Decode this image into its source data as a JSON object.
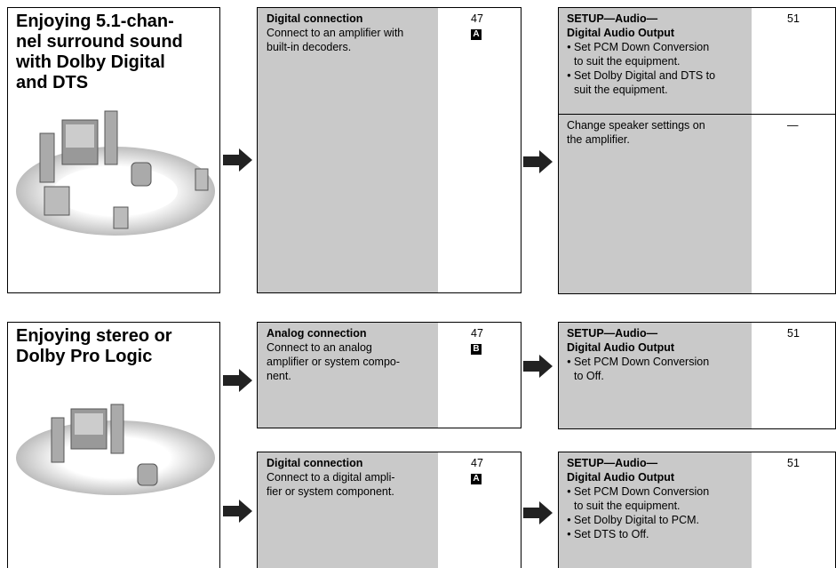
{
  "sections": [
    {
      "title": [
        "Enjoying 5.1-chan-",
        "nel surround sound",
        "with Dolby Digital",
        "and DTS"
      ],
      "rows": [
        {
          "connection": {
            "heading": "Digital connection",
            "lines": [
              "Connect to an amplifier with",
              "built-in decoders."
            ],
            "page": 47,
            "badge": "A"
          },
          "settings": [
            {
              "heading": [
                "SETUP—Audio—",
                "Digital Audio Output"
              ],
              "bullets": [
                [
                  "Set PCM Down Conversion",
                  "to suit the equipment."
                ],
                [
                  "Set Dolby Digital and DTS to",
                  "suit the equipment."
                ]
              ],
              "page": 51
            },
            {
              "lines": [
                "Change speaker settings on",
                "the amplifier."
              ],
              "page": "—"
            }
          ]
        }
      ]
    },
    {
      "title": [
        "Enjoying stereo or",
        "Dolby Pro Logic"
      ],
      "rows": [
        {
          "connection": {
            "heading": "Analog connection",
            "lines": [
              "Connect to an analog",
              "amplifier or system compo-",
              "nent."
            ],
            "page": 47,
            "badge": "B"
          },
          "settings": [
            {
              "heading": [
                "SETUP—Audio—",
                "Digital Audio Output"
              ],
              "bullets": [
                [
                  "Set PCM Down Conversion",
                  "to Off."
                ]
              ],
              "page": 51
            }
          ]
        },
        {
          "connection": {
            "heading": "Digital connection",
            "lines": [
              "Connect to a digital ampli-",
              "fier or system component."
            ],
            "page": 47,
            "badge": "A"
          },
          "settings": [
            {
              "heading": [
                "SETUP—Audio—",
                "Digital Audio Output"
              ],
              "bullets": [
                [
                  "Set PCM Down Conversion",
                  "to suit the equipment."
                ],
                [
                  "Set Dolby Digital to PCM."
                ],
                [
                  "Set DTS to Off."
                ]
              ],
              "page": 51
            }
          ]
        }
      ]
    }
  ]
}
